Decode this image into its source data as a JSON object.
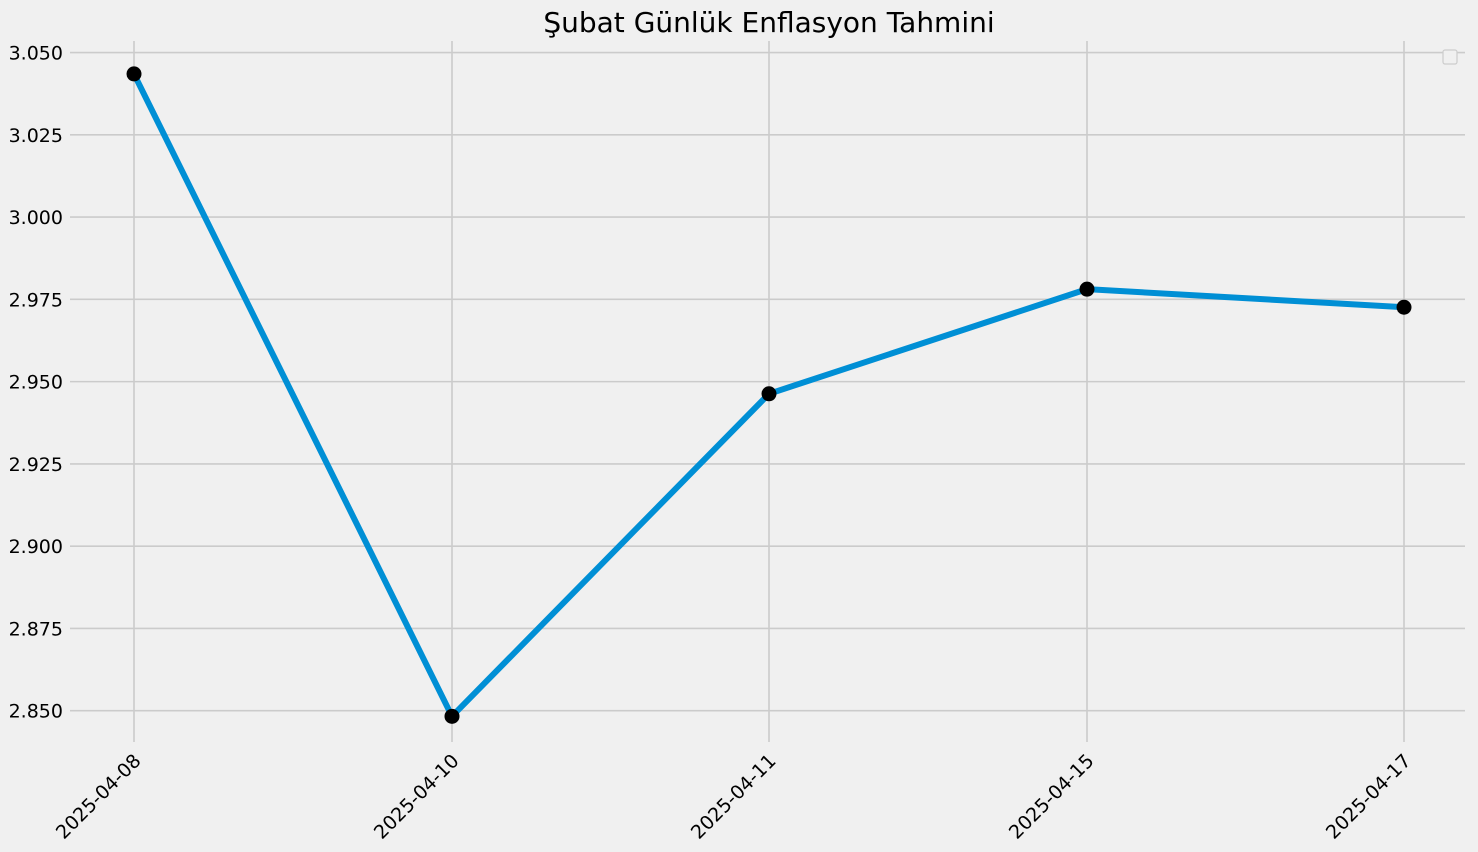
{
  "chart_data": {
    "type": "line",
    "title": "Şubat Günlük Enflasyon Tahmini",
    "xlabel": "",
    "ylabel": "",
    "categories": [
      "2025-04-08",
      "2025-04-10",
      "2025-04-11",
      "2025-04-15",
      "2025-04-17"
    ],
    "series": [
      {
        "values": [
          3.0435,
          2.8483,
          2.9463,
          2.9781,
          2.9726
        ]
      }
    ],
    "ylim": [
      2.8405,
      3.0535
    ],
    "yticks": [
      "2.850",
      "2.875",
      "2.900",
      "2.925",
      "2.950",
      "2.975",
      "3.000",
      "3.025",
      "3.050"
    ],
    "grid": true,
    "legend": "top-right, empty",
    "colors": {
      "background": "#f0f0f0",
      "line": "#008fd5",
      "marker": "#000000",
      "grid": "#cbcbcb"
    }
  }
}
